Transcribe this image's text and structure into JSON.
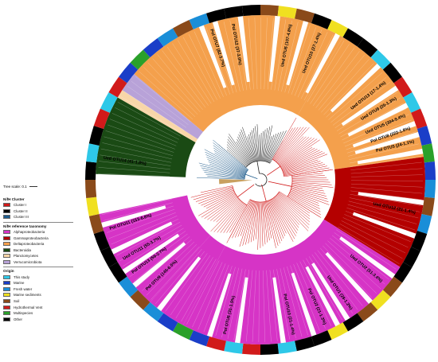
{
  "scale_label": "Tree scale: 0.1",
  "colors": {
    "ring_black": "#000000",
    "orange": "#f4a04c",
    "magenta": "#d634c6",
    "dark_red": "#b40000",
    "dark_green": "#1a4a14",
    "light_peach": "#f8d6a8",
    "lavender": "#b8a2d8",
    "tree_red": "#d11a1a",
    "tree_blue": "#1f5c8c",
    "tree_black": "#222222",
    "tree_tan": "#c8a060"
  },
  "legend": {
    "cluster_title": "NifH Cluster",
    "clusters": [
      {
        "label": "Cluster I",
        "color": "#d11a1a"
      },
      {
        "label": "Cluster II",
        "color": "#000000"
      },
      {
        "label": "Cluster III",
        "color": "#1f5c8c"
      }
    ],
    "taxonomy_title": "NifH reference taxonomy",
    "taxonomy": [
      {
        "label": "Alphaproteobacteria",
        "color": "#d634c6"
      },
      {
        "label": "Gammaproteobacteria",
        "color": "#b40000"
      },
      {
        "label": "Deltaproteobacteria",
        "color": "#f4a04c"
      },
      {
        "label": "Bacteroidia",
        "color": "#1a4a14"
      },
      {
        "label": "Planctomycetes",
        "color": "#f8d6a8"
      },
      {
        "label": "Verrucomicrobiota",
        "color": "#b8a2d8"
      }
    ],
    "origin_title": "Origin",
    "origins": [
      {
        "label": "This study",
        "color": "#2ec8e8"
      },
      {
        "label": "Marine",
        "color": "#1a3ec8"
      },
      {
        "label": "Fresh water",
        "color": "#1a8ed8"
      },
      {
        "label": "Marine sediments",
        "color": "#f0e020"
      },
      {
        "label": "Soil",
        "color": "#8a4a1a"
      },
      {
        "label": "Hydrothermal Vent",
        "color": "#d11a1a"
      },
      {
        "label": "Multispecies",
        "color": "#2aa02a"
      },
      {
        "label": "Other",
        "color": "#000000"
      }
    ]
  },
  "otu_labels": [
    {
      "text": "Ued OTU6 (107-4.8%)",
      "angle": -79
    },
    {
      "text": "Ued OTU10 (27-1.4%)",
      "angle": -68
    },
    {
      "text": "Pol OTU12 (37-3.0%)",
      "angle": -100
    },
    {
      "text": "Pol OTU7 (82-3.7%)",
      "angle": -108
    },
    {
      "text": "Ued OTU13 (17-1.4%)",
      "angle": -38
    },
    {
      "text": "Ued OTU9 (25-1.3%)",
      "angle": -31
    },
    {
      "text": "Ued OTU5 (394-9.4%)",
      "angle": -24
    },
    {
      "text": "Pol OTU8 (222-1.8%)",
      "angle": -19
    },
    {
      "text": "Pol OTU5 (24-1.1%)",
      "angle": -14
    },
    {
      "text": "Ued OTU14 (41-1.8%)",
      "angle": -172
    },
    {
      "text": "Ued OTU12 (21-1.4%)",
      "angle": 12
    },
    {
      "text": "Pol OTU11 (153-6.8%)",
      "angle": 162
    },
    {
      "text": "Ued OTU11 (55-3.7%)",
      "angle": 150
    },
    {
      "text": "Pol OTU13 (59-2.7%)",
      "angle": 144
    },
    {
      "text": "Pol OTU9 (145-6.5%)",
      "angle": 136
    },
    {
      "text": "Ued OTU2 (51-3.4%)",
      "angle": 40
    },
    {
      "text": "Ued OTU1 (28-1.3%)",
      "angle": 55
    },
    {
      "text": "Pol OTU2 (21-1.3%)",
      "angle": 66
    },
    {
      "text": "Pol OTU10 (21-1.4%)",
      "angle": 78
    },
    {
      "text": "Pol OTU6 (31-1.5%)",
      "angle": 103
    }
  ]
}
